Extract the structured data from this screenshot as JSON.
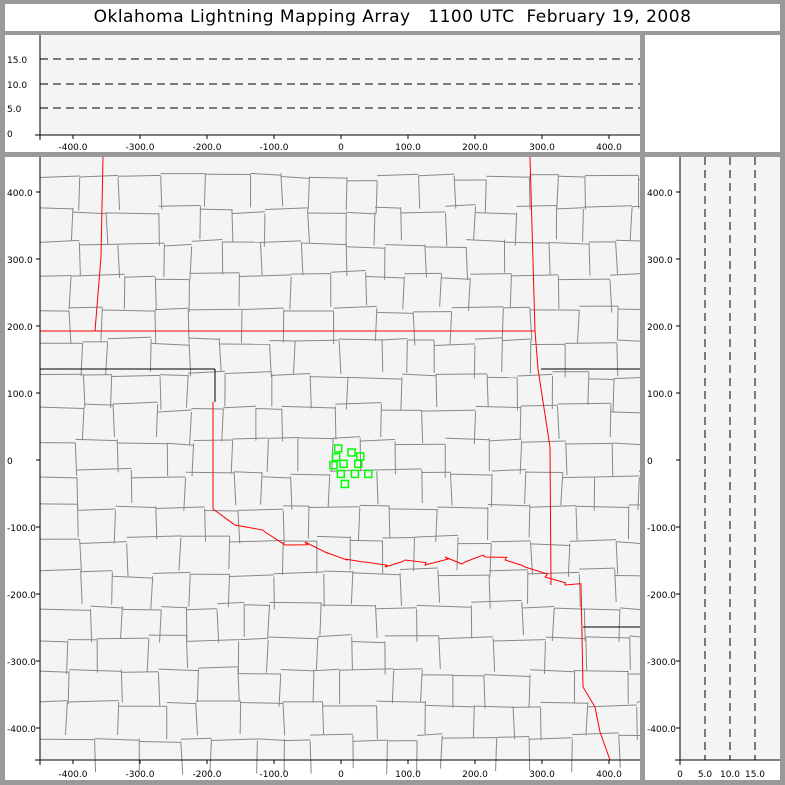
{
  "title": "Oklahoma Lightning Mapping Array   1100 UTC  February 19, 2008",
  "top_panel": {
    "x_ticks": [
      "-400.0",
      "-300.0",
      "-200.0",
      "-100.0",
      "0",
      "100.0",
      "200.0",
      "300.0",
      "400.0"
    ],
    "y_ticks": [
      "0",
      "5.0",
      "10.0",
      "15.0"
    ]
  },
  "main_panel": {
    "x_ticks": [
      "-400.0",
      "-300.0",
      "-200.0",
      "-100.0",
      "0",
      "100.0",
      "200.0",
      "300.0",
      "400.0"
    ],
    "y_ticks": [
      "400.0",
      "300.0",
      "200.0",
      "100.0",
      "0",
      "-100.0",
      "-200.0",
      "-300.0",
      "-400.0"
    ],
    "state_border_color": "#ff0000",
    "county_color": "#888888",
    "station_color": "#00ff00",
    "stations_km": [
      [
        -5,
        18
      ],
      [
        -8,
        5
      ],
      [
        15,
        12
      ],
      [
        28,
        6
      ],
      [
        -12,
        -7
      ],
      [
        3,
        -5
      ],
      [
        25,
        -5
      ],
      [
        -1,
        -20
      ],
      [
        20,
        -20
      ],
      [
        40,
        -20
      ],
      [
        5,
        -35
      ]
    ]
  },
  "right_panel": {
    "x_ticks": [
      "0",
      "5.0",
      "10.0",
      "15.0"
    ],
    "y_ticks": [
      "400.0",
      "300.0",
      "200.0",
      "100.0",
      "0",
      "-100.0",
      "-200.0",
      "-300.0",
      "-400.0"
    ]
  }
}
